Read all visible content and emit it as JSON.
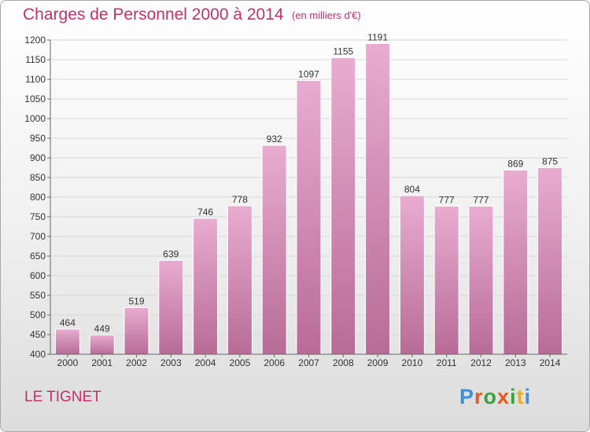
{
  "header": {
    "title": "Charges de Personnel 2000 à 2014",
    "unit_note": "(en milliers d'€)"
  },
  "footer": {
    "commune": "LE TIGNET",
    "logo_text": "Proxiti"
  },
  "colors": {
    "accent": "#c0306a",
    "bar_top": "#e9acd0",
    "bar_bottom": "#b76c97",
    "grid": "#d8d8d8",
    "logo": [
      "#3d8fd6",
      "#e85a1c",
      "#3aa23a",
      "#e85a1c",
      "#3aa23a",
      "#e8b21c",
      "#3d8fd6"
    ]
  },
  "chart_data": {
    "type": "bar",
    "categories": [
      "2000",
      "2001",
      "2002",
      "2003",
      "2004",
      "2005",
      "2006",
      "2007",
      "2008",
      "2009",
      "2010",
      "2011",
      "2012",
      "2013",
      "2014"
    ],
    "values": [
      464,
      449,
      519,
      639,
      746,
      778,
      932,
      1097,
      1155,
      1191,
      804,
      777,
      777,
      869,
      875
    ],
    "title": "Charges de Personnel 2000 à 2014",
    "xlabel": "",
    "ylabel": "",
    "ylim": [
      400,
      1200
    ],
    "yticks": [
      400,
      450,
      500,
      550,
      600,
      650,
      700,
      750,
      800,
      850,
      900,
      950,
      1000,
      1050,
      1100,
      1150,
      1200
    ],
    "grid": true,
    "legend": "none"
  }
}
